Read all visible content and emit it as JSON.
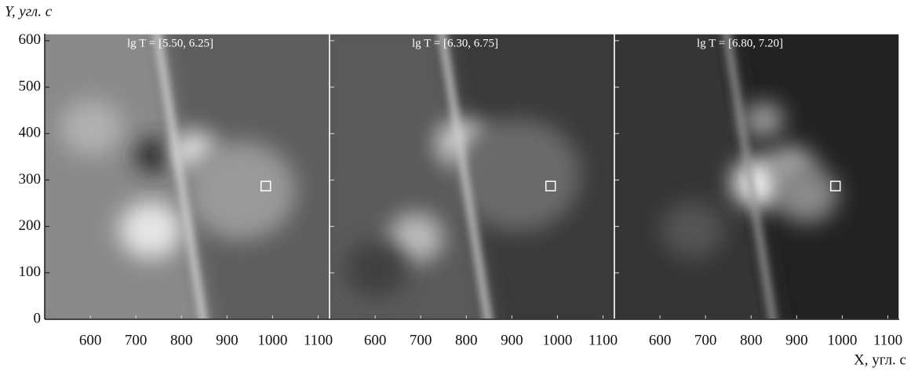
{
  "chart_data": {
    "type": "image",
    "ylabel": "Y, угл. с",
    "xlabel": "X, угл. с",
    "ylim": [
      0,
      615
    ],
    "yticks": [
      0,
      100,
      200,
      300,
      400,
      500,
      600
    ],
    "xlim": [
      500,
      1125
    ],
    "xticks": [
      600,
      700,
      800,
      900,
      1000,
      1100
    ],
    "marker": {
      "x": 985,
      "y": 287
    },
    "panels": [
      {
        "label": "lg T = [5.50, 6.25]"
      },
      {
        "label": "lg T = [6.30, 6.75]"
      },
      {
        "label": "lg T = [6.80, 7.20]"
      }
    ]
  }
}
